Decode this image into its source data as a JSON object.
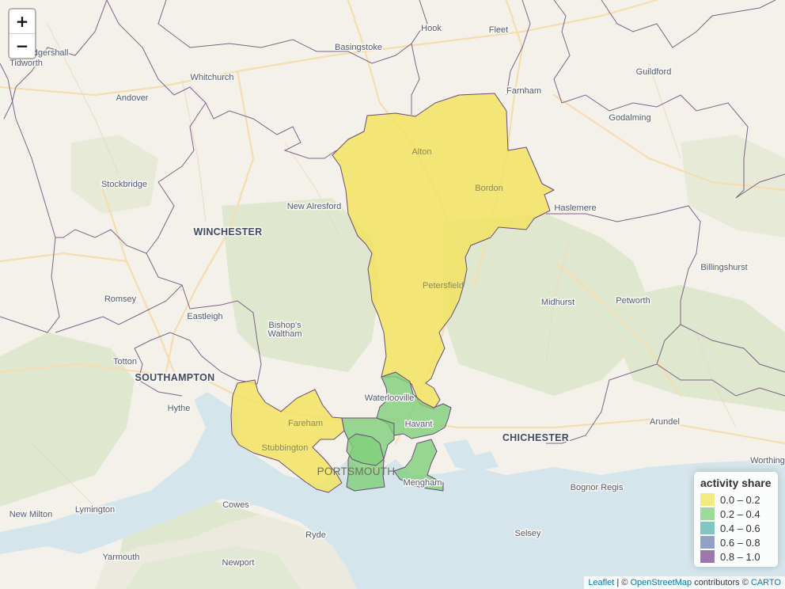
{
  "map": {
    "places": [
      {
        "name": "Hook",
        "kind": "town"
      },
      {
        "name": "Fleet",
        "kind": "town"
      },
      {
        "name": "Basingstoke",
        "kind": "town"
      },
      {
        "name": "Ludgershall",
        "kind": "town"
      },
      {
        "name": "Tidworth",
        "kind": "town"
      },
      {
        "name": "Whitchurch",
        "kind": "town"
      },
      {
        "name": "Andover",
        "kind": "town"
      },
      {
        "name": "Farnham",
        "kind": "town"
      },
      {
        "name": "Guildford",
        "kind": "town"
      },
      {
        "name": "Godalming",
        "kind": "town"
      },
      {
        "name": "Alton",
        "kind": "town"
      },
      {
        "name": "Bordon",
        "kind": "town"
      },
      {
        "name": "Haslemere",
        "kind": "town"
      },
      {
        "name": "Stockbridge",
        "kind": "town"
      },
      {
        "name": "New Alresford",
        "kind": "town"
      },
      {
        "name": "WINCHESTER",
        "kind": "city"
      },
      {
        "name": "Billingshurst",
        "kind": "town"
      },
      {
        "name": "Petersfield",
        "kind": "town"
      },
      {
        "name": "Midhurst",
        "kind": "town"
      },
      {
        "name": "Petworth",
        "kind": "town"
      },
      {
        "name": "Romsey",
        "kind": "town"
      },
      {
        "name": "Eastleigh",
        "kind": "town"
      },
      {
        "name": "Bishop's",
        "kind": "town"
      },
      {
        "name": "Waltham",
        "kind": "town"
      },
      {
        "name": "Totton",
        "kind": "town"
      },
      {
        "name": "SOUTHAMPTON",
        "kind": "city"
      },
      {
        "name": "Waterlooville",
        "kind": "town"
      },
      {
        "name": "Hythe",
        "kind": "town"
      },
      {
        "name": "Fareham",
        "kind": "town"
      },
      {
        "name": "Havant",
        "kind": "town"
      },
      {
        "name": "CHICHESTER",
        "kind": "city"
      },
      {
        "name": "Arundel",
        "kind": "town"
      },
      {
        "name": "Stubbington",
        "kind": "town"
      },
      {
        "name": "PORTSMOUTH",
        "kind": "city"
      },
      {
        "name": "Worthing",
        "kind": "town"
      },
      {
        "name": "Mengham",
        "kind": "town"
      },
      {
        "name": "Bognor Regis",
        "kind": "town"
      },
      {
        "name": "New Milton",
        "kind": "town"
      },
      {
        "name": "Lymington",
        "kind": "town"
      },
      {
        "name": "Cowes",
        "kind": "town"
      },
      {
        "name": "Selsey",
        "kind": "town"
      },
      {
        "name": "Ryde",
        "kind": "town"
      },
      {
        "name": "Yarmouth",
        "kind": "town"
      },
      {
        "name": "Newport",
        "kind": "town"
      }
    ],
    "regions": [
      {
        "name": "north-hampshire-region",
        "share_class": "0.0 – 0.2"
      },
      {
        "name": "fareham-region",
        "share_class": "0.0 – 0.2"
      },
      {
        "name": "havant-region",
        "share_class": "0.2 – 0.4"
      },
      {
        "name": "portsmouth-region",
        "share_class": "0.2 – 0.4"
      },
      {
        "name": "gosport-north-region",
        "share_class": "0.2 – 0.4"
      },
      {
        "name": "hayling-region",
        "share_class": "0.2 – 0.4"
      }
    ],
    "colors": {
      "land": "#f4f1ea",
      "water": "#d4e6ec",
      "green": "#dfe7d0",
      "boundary": "#6b4a78"
    }
  },
  "zoom": {
    "in_label": "+",
    "out_label": "−"
  },
  "legend": {
    "title": "activity share",
    "items": [
      {
        "label": "0.0 – 0.2",
        "color": "#f2e35a"
      },
      {
        "label": "0.2 – 0.4",
        "color": "#7fcf7a"
      },
      {
        "label": "0.4 – 0.6",
        "color": "#5bb0b2"
      },
      {
        "label": "0.6 – 0.8",
        "color": "#6e83b3"
      },
      {
        "label": "0.8 – 1.0",
        "color": "#7d4b8f"
      }
    ]
  },
  "attribution": {
    "leaflet": "Leaflet",
    "sep": " | © ",
    "osm": "OpenStreetMap",
    "contributors": " contributors © ",
    "carto": "CARTO"
  }
}
